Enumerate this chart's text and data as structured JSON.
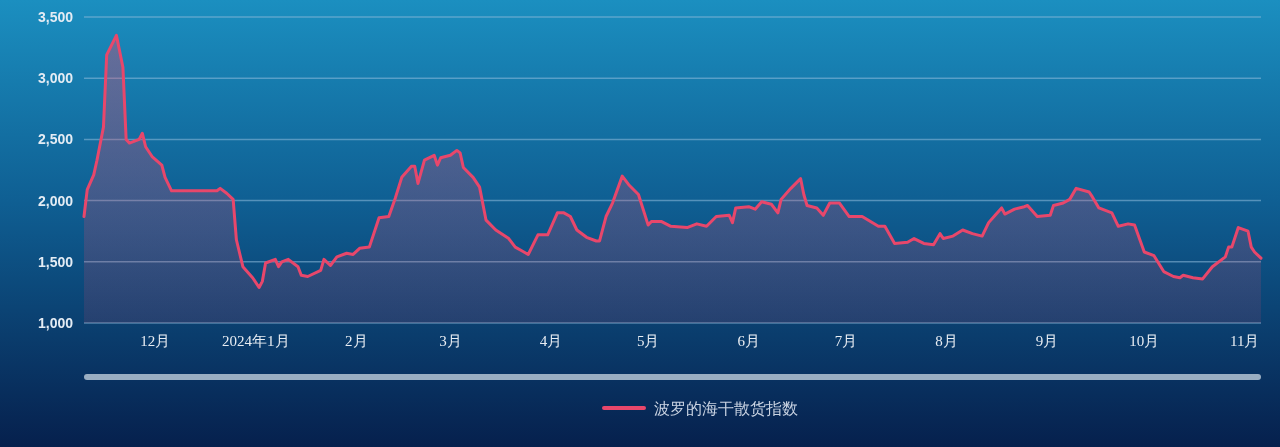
{
  "chart_data": {
    "type": "area",
    "x": [
      "2023-11-09",
      "2023-11-10",
      "2023-11-12",
      "2023-11-13",
      "2023-11-15",
      "2023-11-16",
      "2023-11-19",
      "2023-11-21",
      "2023-11-22",
      "2023-11-23",
      "2023-11-26",
      "2023-11-27",
      "2023-11-28",
      "2023-11-30",
      "2023-12-03",
      "2023-12-04",
      "2023-12-06",
      "2023-12-20",
      "2023-12-21",
      "2023-12-23",
      "2023-12-25",
      "2023-12-26",
      "2023-12-28",
      "2023-12-31",
      "2024-01-02",
      "2024-01-03",
      "2024-01-04",
      "2024-01-07",
      "2024-01-08",
      "2024-01-09",
      "2024-01-11",
      "2024-01-14",
      "2024-01-15",
      "2024-01-17",
      "2024-01-21",
      "2024-01-22",
      "2024-01-24",
      "2024-01-26",
      "2024-01-29",
      "2024-01-31",
      "2024-02-02",
      "2024-02-05",
      "2024-02-08",
      "2024-02-11",
      "2024-02-13",
      "2024-02-15",
      "2024-02-18",
      "2024-02-19",
      "2024-02-20",
      "2024-02-22",
      "2024-02-25",
      "2024-02-26",
      "2024-02-27",
      "2024-03-01",
      "2024-03-03",
      "2024-03-04",
      "2024-03-05",
      "2024-03-08",
      "2024-03-10",
      "2024-03-12",
      "2024-03-15",
      "2024-03-19",
      "2024-03-21",
      "2024-03-23",
      "2024-03-25",
      "2024-03-28",
      "2024-03-31",
      "2024-04-03",
      "2024-04-05",
      "2024-04-07",
      "2024-04-09",
      "2024-04-12",
      "2024-04-15",
      "2024-04-16",
      "2024-04-18",
      "2024-04-20",
      "2024-04-23",
      "2024-04-25",
      "2024-04-28",
      "2024-05-01",
      "2024-05-02",
      "2024-05-05",
      "2024-05-08",
      "2024-05-13",
      "2024-05-16",
      "2024-05-19",
      "2024-05-22",
      "2024-05-26",
      "2024-05-27",
      "2024-05-28",
      "2024-06-01",
      "2024-06-03",
      "2024-06-05",
      "2024-06-08",
      "2024-06-10",
      "2024-06-11",
      "2024-06-14",
      "2024-06-17",
      "2024-06-18",
      "2024-06-19",
      "2024-06-22",
      "2024-06-24",
      "2024-06-26",
      "2024-06-29",
      "2024-07-02",
      "2024-07-06",
      "2024-07-11",
      "2024-07-13",
      "2024-07-16",
      "2024-07-20",
      "2024-07-22",
      "2024-07-25",
      "2024-07-28",
      "2024-07-30",
      "2024-07-31",
      "2024-08-03",
      "2024-08-06",
      "2024-08-09",
      "2024-08-12",
      "2024-08-14",
      "2024-08-16",
      "2024-08-18",
      "2024-08-19",
      "2024-08-22",
      "2024-08-25",
      "2024-08-26",
      "2024-08-29",
      "2024-09-02",
      "2024-09-03",
      "2024-09-06",
      "2024-09-08",
      "2024-09-10",
      "2024-09-14",
      "2024-09-15",
      "2024-09-17",
      "2024-09-21",
      "2024-09-23",
      "2024-09-26",
      "2024-09-28",
      "2024-10-01",
      "2024-10-04",
      "2024-10-07",
      "2024-10-10",
      "2024-10-12",
      "2024-10-13",
      "2024-10-16",
      "2024-10-19",
      "2024-10-22",
      "2024-10-26",
      "2024-10-27",
      "2024-10-28",
      "2024-10-30",
      "2024-11-02",
      "2024-11-03",
      "2024-11-04",
      "2024-11-06"
    ],
    "series": [
      {
        "name": "波罗的海干散货指数",
        "color": "#e8476b",
        "values": [
          1870,
          2090,
          2210,
          2330,
          2600,
          3190,
          3350,
          3090,
          2500,
          2470,
          2500,
          2550,
          2440,
          2360,
          2290,
          2190,
          2080,
          2080,
          2100,
          2060,
          2010,
          1680,
          1460,
          1370,
          1290,
          1340,
          1490,
          1520,
          1460,
          1500,
          1520,
          1460,
          1390,
          1380,
          1430,
          1520,
          1470,
          1540,
          1570,
          1560,
          1610,
          1620,
          1860,
          1870,
          2020,
          2190,
          2280,
          2280,
          2140,
          2330,
          2370,
          2290,
          2350,
          2370,
          2410,
          2390,
          2270,
          2190,
          2110,
          1840,
          1760,
          1690,
          1620,
          1590,
          1560,
          1720,
          1720,
          1900,
          1900,
          1870,
          1760,
          1700,
          1670,
          1670,
          1870,
          1980,
          2200,
          2130,
          2050,
          1800,
          1830,
          1830,
          1790,
          1780,
          1810,
          1790,
          1870,
          1880,
          1820,
          1940,
          1950,
          1930,
          1990,
          1970,
          1900,
          2010,
          2100,
          2180,
          2050,
          1960,
          1940,
          1880,
          1980,
          1980,
          1870,
          1870,
          1790,
          1790,
          1650,
          1660,
          1690,
          1650,
          1640,
          1730,
          1690,
          1710,
          1760,
          1730,
          1710,
          1820,
          1880,
          1940,
          1890,
          1930,
          1950,
          1960,
          1870,
          1880,
          1960,
          1980,
          2010,
          2100,
          2070,
          2030,
          1940,
          1900,
          1790,
          1810,
          1800,
          1580,
          1550,
          1420,
          1380,
          1370,
          1390,
          1370,
          1360,
          1460,
          1540,
          1620,
          1620,
          1780,
          1750,
          1620,
          1580,
          1530
        ]
      }
    ],
    "xlim": [
      "2023-11-09",
      "2024-11-06"
    ],
    "xticks": [
      {
        "value": "2023-12-01",
        "label": "12月"
      },
      {
        "value": "2024-01-01",
        "label": "2024年1月"
      },
      {
        "value": "2024-02-01",
        "label": "2月"
      },
      {
        "value": "2024-03-01",
        "label": "3月"
      },
      {
        "value": "2024-04-01",
        "label": "4月"
      },
      {
        "value": "2024-05-01",
        "label": "5月"
      },
      {
        "value": "2024-06-01",
        "label": "6月"
      },
      {
        "value": "2024-07-01",
        "label": "7月"
      },
      {
        "value": "2024-08-01",
        "label": "8月"
      },
      {
        "value": "2024-09-01",
        "label": "9月"
      },
      {
        "value": "2024-10-01",
        "label": "10月"
      },
      {
        "value": "2024-11-01",
        "label": "11月"
      }
    ],
    "ylim": [
      1000,
      3500
    ],
    "yticks": [
      {
        "value": 1000,
        "label": "1,000"
      },
      {
        "value": 1500,
        "label": "1,500"
      },
      {
        "value": 2000,
        "label": "2,000"
      },
      {
        "value": 2500,
        "label": "2,500"
      },
      {
        "value": 3000,
        "label": "3,000"
      },
      {
        "value": 3500,
        "label": "3,500"
      }
    ],
    "grid": "y",
    "legend": "bottom"
  }
}
